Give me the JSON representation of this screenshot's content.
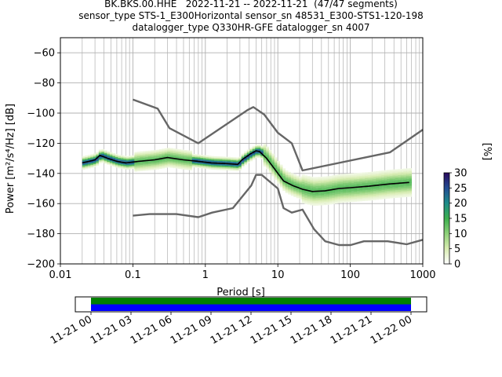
{
  "header": {
    "title_lines": [
      "BK.BKS.00.HHE   2022-11-21 -- 2022-11-21  (47/47 segments)",
      "sensor_type STS-1_E300Horizontal sensor_sn 48531_E300-STS1-120-198",
      "datalogger_type Q330HR-GFE datalogger_sn 4007"
    ]
  },
  "colors": {
    "noise_model": "#666666",
    "mean_line": "#000000",
    "grid": "#b0b0b0",
    "coverage_top": "#008000",
    "coverage_bottom": "#0000ff"
  },
  "chart_data": [
    {
      "type": "heatmap",
      "xlabel": "Period [s]",
      "ylabel": "Power [m²/s⁴/Hz] [dB]",
      "xscale": "log",
      "xlim": [
        0.01,
        1000
      ],
      "ylim": [
        -200,
        -50
      ],
      "x_ticks": [
        0.01,
        0.1,
        1,
        10,
        100,
        1000
      ],
      "x_tick_labels": [
        "0.01",
        "0.1",
        "1",
        "10",
        "100",
        "1000"
      ],
      "y_ticks": [
        -200,
        -180,
        -160,
        -140,
        -120,
        -100,
        -80,
        -60
      ],
      "y_tick_labels": [
        "−200",
        "−180",
        "−160",
        "−140",
        "−120",
        "−100",
        "−80",
        "−60"
      ],
      "grid": true,
      "colorbar": {
        "label": "[%]",
        "min": 0,
        "max": 30,
        "ticks": [
          0,
          5,
          10,
          15,
          20,
          25,
          30
        ],
        "tick_labels": [
          "0",
          "5",
          "10",
          "15",
          "20",
          "25",
          "30"
        ]
      },
      "series": [
        {
          "kind": "high_noise_model",
          "points": [
            [
              0.1,
              -91
            ],
            [
              0.22,
              -97
            ],
            [
              0.32,
              -110
            ],
            [
              0.8,
              -120
            ],
            [
              3.8,
              -98
            ],
            [
              4.6,
              -96
            ],
            [
              6.5,
              -101
            ],
            [
              10,
              -113
            ],
            [
              15.6,
              -120
            ],
            [
              21.9,
              -138
            ],
            [
              354,
              -126
            ],
            [
              1000,
              -111
            ]
          ]
        },
        {
          "kind": "low_noise_model",
          "points": [
            [
              0.1,
              -168
            ],
            [
              0.17,
              -167
            ],
            [
              0.4,
              -167
            ],
            [
              0.8,
              -169
            ],
            [
              1.24,
              -166
            ],
            [
              2.4,
              -163
            ],
            [
              4.3,
              -148
            ],
            [
              5.0,
              -141
            ],
            [
              6.0,
              -141
            ],
            [
              10,
              -150
            ],
            [
              12,
              -163
            ],
            [
              15.6,
              -166
            ],
            [
              21.9,
              -164
            ],
            [
              31.6,
              -177
            ],
            [
              45,
              -185
            ],
            [
              70,
              -187.5
            ],
            [
              101,
              -187.5
            ],
            [
              154,
              -185
            ],
            [
              328,
              -185
            ],
            [
              600,
              -187
            ],
            [
              1000,
              -184
            ]
          ]
        },
        {
          "kind": "mean_psd",
          "points": [
            [
              0.02,
              -133
            ],
            [
              0.025,
              -132
            ],
            [
              0.03,
              -131
            ],
            [
              0.035,
              -128
            ],
            [
              0.045,
              -130
            ],
            [
              0.06,
              -132
            ],
            [
              0.08,
              -133
            ],
            [
              0.12,
              -132
            ],
            [
              0.2,
              -131
            ],
            [
              0.3,
              -129.5
            ],
            [
              0.5,
              -131
            ],
            [
              0.8,
              -132
            ],
            [
              1.2,
              -133
            ],
            [
              2,
              -133.5
            ],
            [
              2.8,
              -134
            ],
            [
              3.2,
              -131
            ],
            [
              4.2,
              -127
            ],
            [
              5,
              -125
            ],
            [
              5.6,
              -125.5
            ],
            [
              7,
              -130
            ],
            [
              9,
              -137
            ],
            [
              12,
              -145
            ],
            [
              16,
              -148
            ],
            [
              22,
              -150.5
            ],
            [
              30,
              -152
            ],
            [
              45,
              -151.5
            ],
            [
              70,
              -150
            ],
            [
              100,
              -149.5
            ],
            [
              180,
              -148.5
            ],
            [
              350,
              -147
            ],
            [
              650,
              -146
            ]
          ]
        }
      ]
    },
    {
      "type": "timeline",
      "description": "data availability",
      "x_tick_labels": [
        "11-21 00",
        "11-21 03",
        "11-21 06",
        "11-21 09",
        "11-21 12",
        "11-21 15",
        "11-21 18",
        "11-21 21",
        "11-22 00"
      ],
      "segments_covered_fraction": 1.0,
      "bars": [
        "coverage_top",
        "coverage_bottom"
      ]
    }
  ]
}
